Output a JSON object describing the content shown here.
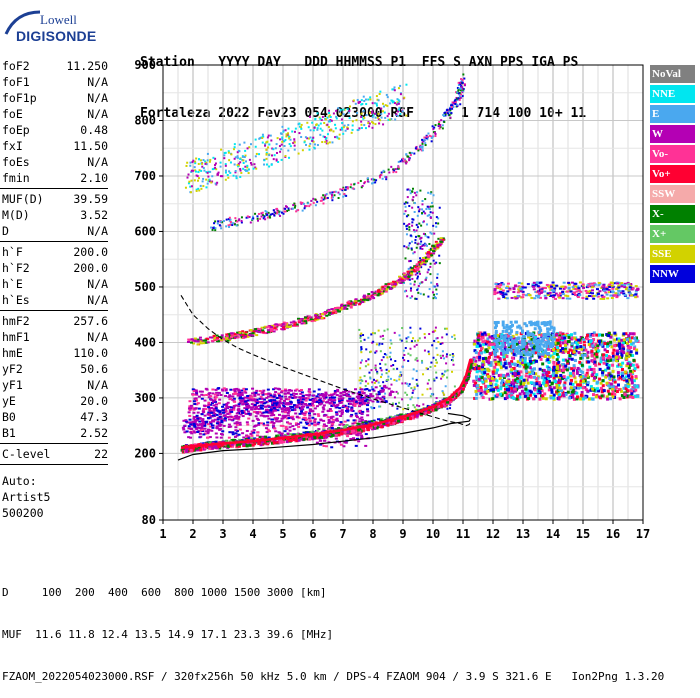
{
  "logo": {
    "brand": "Lowell",
    "name": "DIGISONDE"
  },
  "header": {
    "line1": "Station   YYYY DAY   DDD HHMMSS P1  FFS S AXN PPS IGA PS",
    "line2": "Fortaleza 2022 Fev23 054 023000 RSF      1 714 100 10+ 11"
  },
  "params": {
    "group1": [
      {
        "name": "foF2",
        "value": "11.250"
      },
      {
        "name": "foF1",
        "value": "N/A"
      },
      {
        "name": "foF1p",
        "value": "N/A"
      },
      {
        "name": "foE",
        "value": "N/A"
      },
      {
        "name": "foEp",
        "value": "0.48"
      },
      {
        "name": "fxI",
        "value": "11.50"
      },
      {
        "name": "foEs",
        "value": "N/A"
      },
      {
        "name": "fmin",
        "value": "2.10"
      }
    ],
    "group2": [
      {
        "name": "MUF(D)",
        "value": "39.59"
      },
      {
        "name": "M(D)",
        "value": "3.52"
      },
      {
        "name": "D",
        "value": "N/A"
      }
    ],
    "group3": [
      {
        "name": "h`F",
        "value": "200.0"
      },
      {
        "name": "h`F2",
        "value": "200.0"
      },
      {
        "name": "h`E",
        "value": "N/A"
      },
      {
        "name": "h`Es",
        "value": "N/A"
      }
    ],
    "group4": [
      {
        "name": "hmF2",
        "value": "257.6"
      },
      {
        "name": "hmF1",
        "value": "N/A"
      },
      {
        "name": "hmE",
        "value": "110.0"
      },
      {
        "name": "yF2",
        "value": "50.6"
      },
      {
        "name": "yF1",
        "value": "N/A"
      },
      {
        "name": "yE",
        "value": "20.0"
      },
      {
        "name": "B0",
        "value": "47.3"
      },
      {
        "name": "B1",
        "value": "2.52"
      }
    ],
    "group5": [
      {
        "name": "C-level",
        "value": "22"
      }
    ],
    "footer_lines": [
      "Auto:",
      "Artist5",
      "500200"
    ]
  },
  "legend": [
    {
      "label": "NoVal",
      "color": "#808080"
    },
    {
      "label": "NNE",
      "color": "#00e6f0"
    },
    {
      "label": "E",
      "color": "#4aa8ef"
    },
    {
      "label": "W",
      "color": "#b400b4"
    },
    {
      "label": "Vo-",
      "color": "#ff3296"
    },
    {
      "label": "Vo+",
      "color": "#ff0032"
    },
    {
      "label": "SSW",
      "color": "#f5aaaa"
    },
    {
      "label": "X-",
      "color": "#008000"
    },
    {
      "label": "X+",
      "color": "#64c864"
    },
    {
      "label": "SSE",
      "color": "#d2d200"
    },
    {
      "label": "NNW",
      "color": "#0000dc"
    }
  ],
  "footer": {
    "line1": "D     100  200  400  600  800 1000 1500 3000 [km]",
    "line2": "MUF  11.6 11.8 12.4 13.5 14.9 17.1 23.3 39.6 [MHz]",
    "line3": "FZAOM_2022054023000.RSF / 320fx256h 50 kHz 5.0 km / DPS-4 FZAOM 904 / 3.9 S 321.6 E   Ion2Png 1.3.20"
  },
  "chart_data": {
    "type": "scatter",
    "xlim": [
      1,
      17
    ],
    "ylim": [
      80,
      900
    ],
    "x_ticks": [
      1,
      2,
      3,
      4,
      5,
      6,
      7,
      8,
      9,
      10,
      11,
      12,
      13,
      14,
      15,
      16,
      17
    ],
    "y_ticks": [
      80,
      200,
      300,
      400,
      500,
      600,
      700,
      800,
      900
    ],
    "x_grid_minor": 0.5,
    "grid": true,
    "traces": {
      "o_trace_primary": [
        [
          1.6,
          210
        ],
        [
          2.0,
          213
        ],
        [
          3.0,
          218
        ],
        [
          4.0,
          222
        ],
        [
          5.0,
          228
        ],
        [
          6.0,
          234
        ],
        [
          7.0,
          242
        ],
        [
          8.0,
          252
        ],
        [
          9.0,
          266
        ],
        [
          10.0,
          284
        ],
        [
          10.5,
          298
        ],
        [
          10.9,
          318
        ],
        [
          11.1,
          340
        ],
        [
          11.25,
          370
        ]
      ],
      "x_trace_primary": [
        [
          1.6,
          212
        ],
        [
          2.5,
          218
        ],
        [
          4.0,
          226
        ],
        [
          6.0,
          238
        ],
        [
          8.0,
          258
        ],
        [
          9.5,
          276
        ],
        [
          10.5,
          300
        ]
      ],
      "multihop_2": [
        [
          1.8,
          402
        ],
        [
          3.0,
          410
        ],
        [
          4.0,
          420
        ],
        [
          5.0,
          432
        ],
        [
          6.0,
          446
        ],
        [
          7.0,
          466
        ],
        [
          8.0,
          488
        ],
        [
          8.8,
          512
        ],
        [
          9.5,
          540
        ],
        [
          10.3,
          590
        ]
      ],
      "multihop_3": [
        [
          2.6,
          612
        ],
        [
          4.0,
          626
        ],
        [
          5.5,
          646
        ],
        [
          7.0,
          672
        ],
        [
          8.5,
          708
        ],
        [
          9.5,
          750
        ],
        [
          10.3,
          800
        ],
        [
          10.8,
          840
        ],
        [
          11.0,
          880
        ]
      ],
      "spread_f2_high": [
        [
          1.8,
          700
        ],
        [
          3.0,
          720
        ],
        [
          4.5,
          750
        ],
        [
          6.0,
          780
        ],
        [
          7.5,
          810
        ],
        [
          9.0,
          840
        ]
      ],
      "es_lower": [
        [
          1.7,
          250
        ],
        [
          2.5,
          265
        ],
        [
          3.5,
          280
        ],
        [
          4.5,
          290
        ],
        [
          5.5,
          295
        ],
        [
          6.5,
          300
        ],
        [
          7.5,
          305
        ],
        [
          8.5,
          310
        ]
      ]
    },
    "curves": {
      "profile_solid": [
        [
          1.5,
          188
        ],
        [
          2.0,
          198
        ],
        [
          3.0,
          205
        ],
        [
          4.0,
          208
        ],
        [
          5.0,
          212
        ],
        [
          6.0,
          216
        ],
        [
          7.0,
          222
        ],
        [
          8.0,
          228
        ],
        [
          9.0,
          236
        ],
        [
          10.0,
          246
        ],
        [
          10.6,
          254
        ],
        [
          11.2,
          258
        ],
        [
          11.25,
          262
        ],
        [
          11.0,
          268
        ],
        [
          10.5,
          272
        ]
      ],
      "muf_dashed": [
        [
          1.6,
          485
        ],
        [
          2.0,
          450
        ],
        [
          2.5,
          425
        ],
        [
          3.0,
          405
        ],
        [
          3.5,
          390
        ],
        [
          4.0,
          378
        ],
        [
          5.0,
          356
        ],
        [
          6.0,
          336
        ],
        [
          7.0,
          316
        ],
        [
          8.0,
          298
        ],
        [
          9.0,
          282
        ],
        [
          10.0,
          266
        ],
        [
          10.5,
          258
        ],
        [
          10.9,
          254
        ],
        [
          11.1,
          250
        ],
        [
          11.2,
          252
        ],
        [
          11.25,
          256
        ]
      ]
    }
  }
}
